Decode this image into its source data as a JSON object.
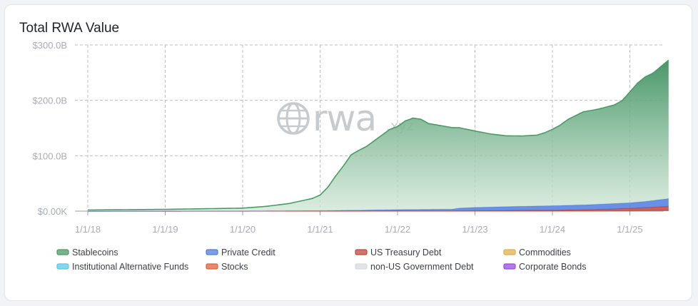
{
  "title": "Total RWA Value",
  "chart_data": {
    "type": "area",
    "title": "Total RWA Value",
    "xlabel": "",
    "ylabel": "",
    "x_ticks": [
      "1/1/18",
      "1/1/19",
      "1/1/20",
      "1/1/21",
      "1/1/22",
      "1/1/23",
      "1/1/24",
      "1/1/25"
    ],
    "y_ticks": [
      "$0.00K",
      "$100.0B",
      "$200.0B",
      "$300.0B"
    ],
    "ylim": [
      0,
      300
    ],
    "xlim": [
      2018.0,
      2025.5
    ],
    "grid": true,
    "grid_style": "dashed",
    "legend_position": "bottom",
    "watermark": "rwa.xyz",
    "series": [
      {
        "name": "Stablecoins",
        "color": "#4a9a66",
        "x": [
          2018.0,
          2018.5,
          2019.0,
          2019.5,
          2020.0,
          2020.3,
          2020.6,
          2020.9,
          2021.0,
          2021.1,
          2021.2,
          2021.3,
          2021.4,
          2021.5,
          2021.6,
          2021.7,
          2021.8,
          2021.9,
          2022.0,
          2022.1,
          2022.2,
          2022.3,
          2022.4,
          2022.6,
          2022.8,
          2023.0,
          2023.2,
          2023.4,
          2023.6,
          2023.8,
          2023.9,
          2024.0,
          2024.1,
          2024.2,
          2024.4,
          2024.6,
          2024.8,
          2024.9,
          2025.0,
          2025.1,
          2025.2,
          2025.3,
          2025.4,
          2025.5
        ],
        "values": [
          2,
          2.5,
          3,
          4,
          5,
          8,
          13,
          22,
          28,
          42,
          62,
          80,
          100,
          108,
          115,
          125,
          135,
          145,
          150,
          160,
          165,
          163,
          155,
          150,
          145,
          138,
          132,
          128,
          127,
          128,
          132,
          138,
          145,
          155,
          168,
          172,
          178,
          185,
          200,
          215,
          225,
          230,
          240,
          250
        ]
      },
      {
        "name": "Private Credit",
        "color": "#4f7ddf",
        "x": [
          2018.0,
          2020.0,
          2021.0,
          2021.5,
          2022.0,
          2022.5,
          2022.7,
          2022.8,
          2023.0,
          2023.5,
          2024.0,
          2024.5,
          2025.0,
          2025.2,
          2025.5
        ],
        "values": [
          0,
          0.3,
          0.8,
          1.5,
          2.5,
          3,
          3,
          5,
          6,
          7,
          8,
          9,
          10,
          11,
          14
        ]
      },
      {
        "name": "US Treasury Debt",
        "color": "#c0463e",
        "x": [
          2018.0,
          2022.5,
          2023.0,
          2023.5,
          2024.0,
          2024.5,
          2025.0,
          2025.2,
          2025.5
        ],
        "values": [
          0,
          0.1,
          0.5,
          1.2,
          1.5,
          2.5,
          4.5,
          5.5,
          7
        ]
      },
      {
        "name": "Commodities",
        "color": "#e3b04b",
        "values": []
      },
      {
        "name": "Institutional Alternative Funds",
        "color": "#5bc8e5",
        "values": []
      },
      {
        "name": "Stocks",
        "color": "#e0623a",
        "x": [
          2018.0,
          2024.5,
          2025.0,
          2025.5
        ],
        "values": [
          0,
          0.2,
          0.5,
          1.5
        ]
      },
      {
        "name": "non-US Government Debt",
        "color": "#d5d9e0",
        "values": []
      },
      {
        "name": "Corporate Bonds",
        "color": "#9a4be0",
        "values": []
      }
    ]
  }
}
